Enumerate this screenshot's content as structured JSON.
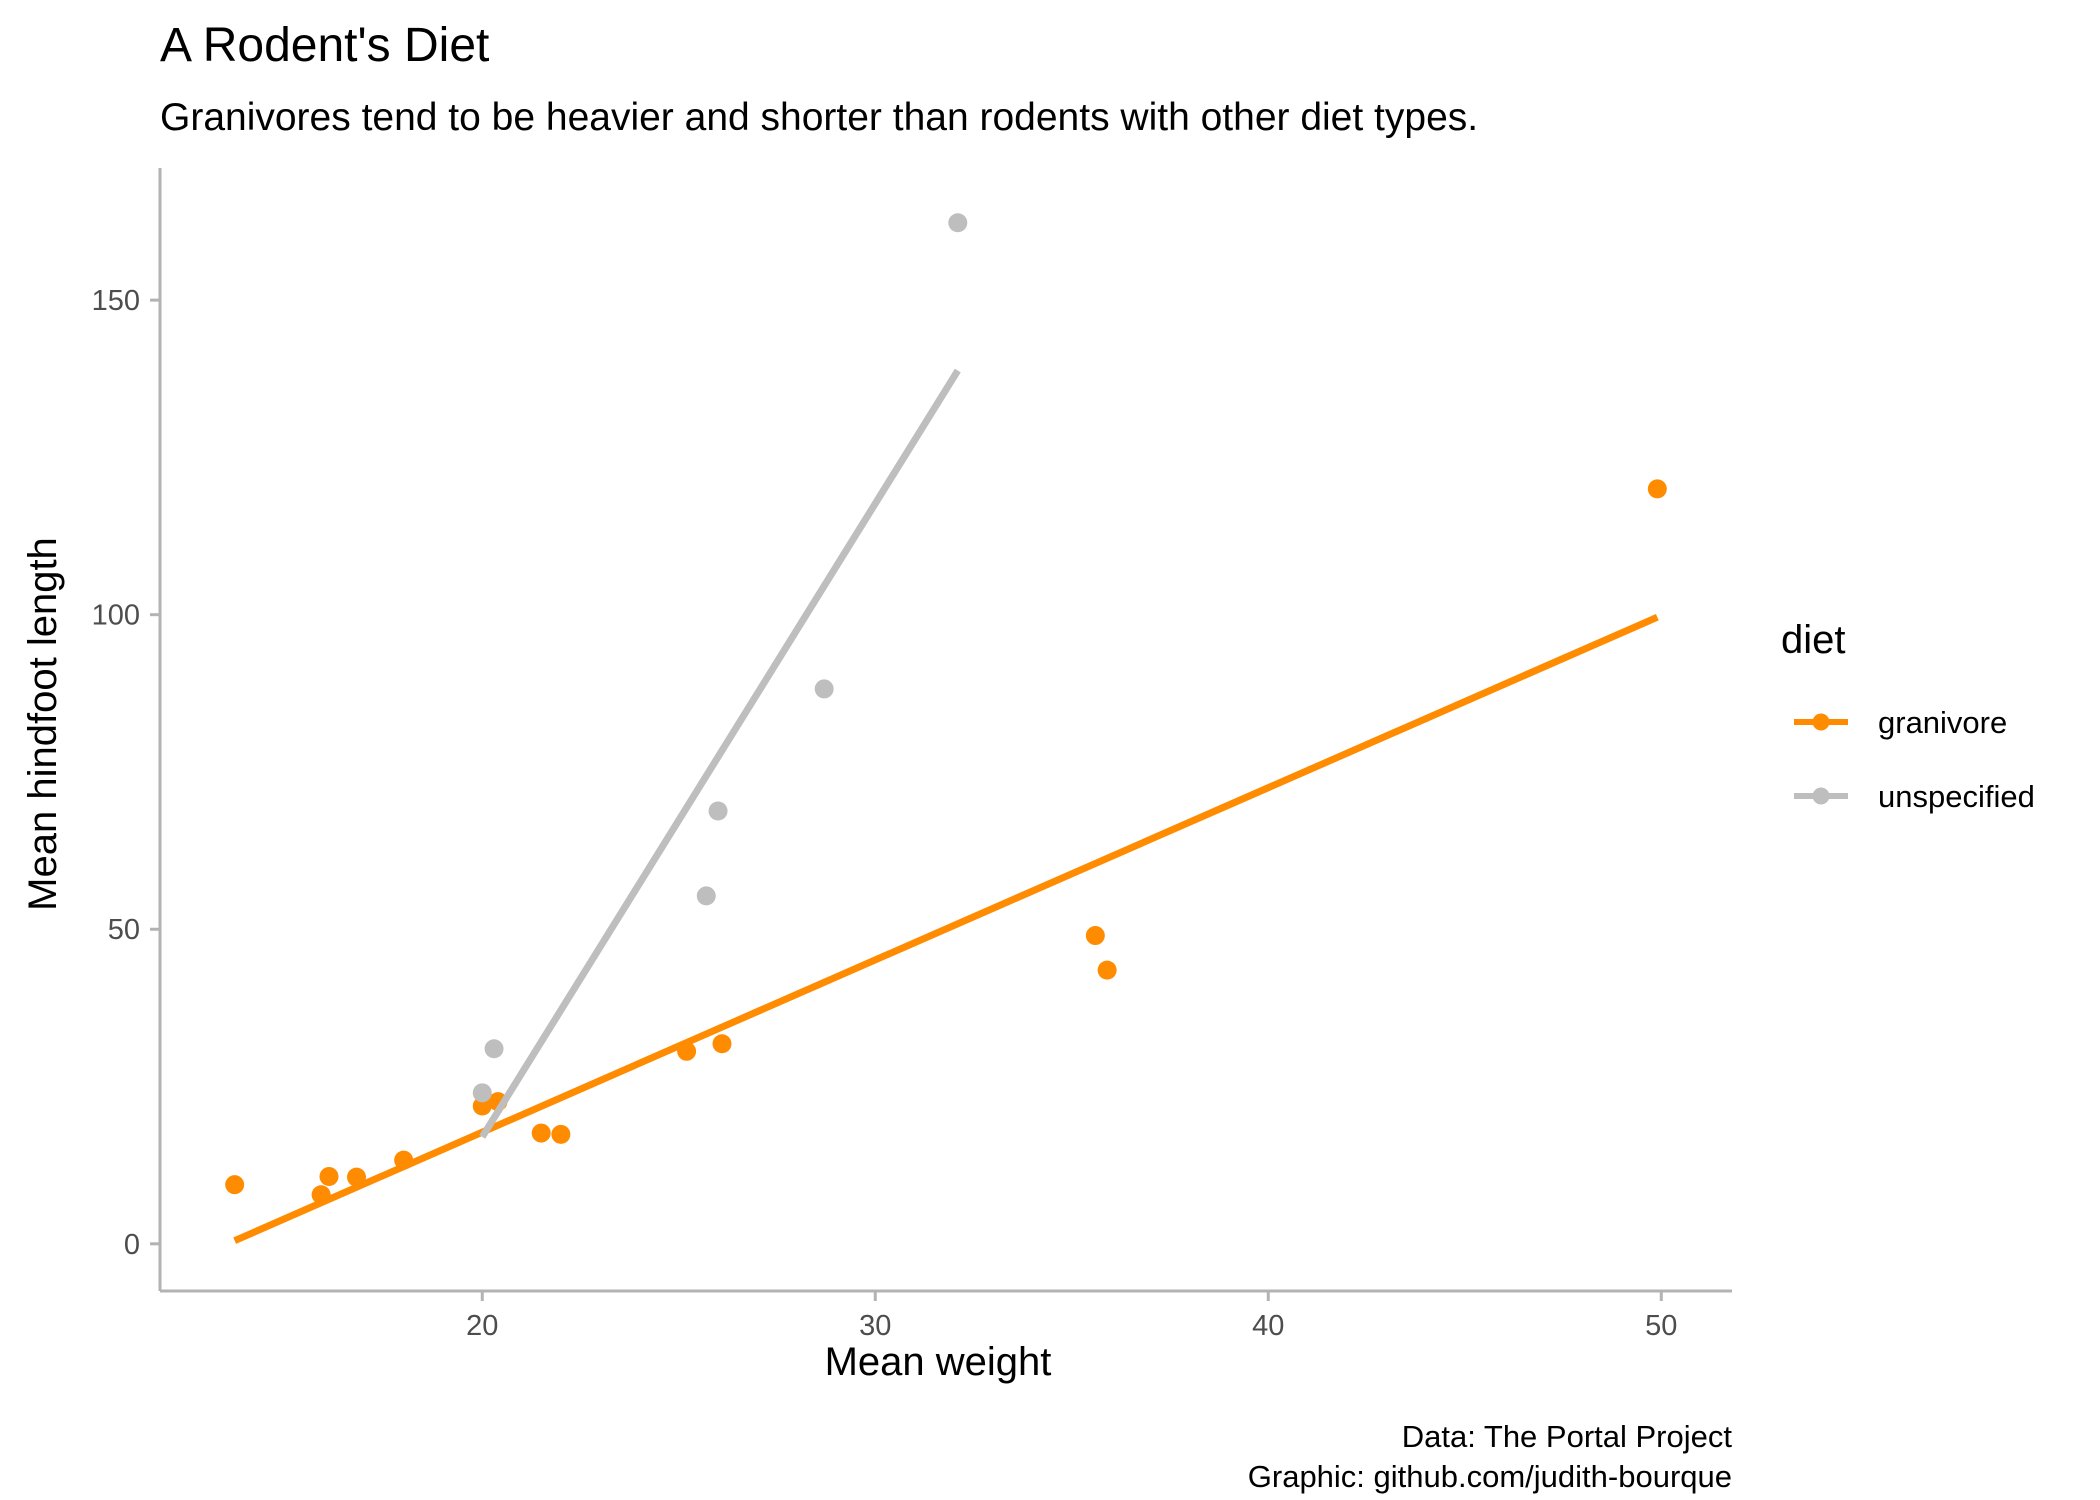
{
  "chart_data": {
    "type": "scatter",
    "title": "A Rodent's Diet",
    "subtitle": "Granivores tend to be heavier and shorter than rodents with other diet types.",
    "xlabel": "Mean weight",
    "ylabel": "Mean hindfoot length",
    "caption": [
      "Data: The Portal Project",
      "Graphic: github.com/judith-bourque"
    ],
    "xlim": [
      11.8,
      51.8
    ],
    "ylim": [
      -7.5,
      171
    ],
    "x_ticks": [
      20,
      30,
      40,
      50
    ],
    "y_ticks": [
      0,
      50,
      100,
      150
    ],
    "grid": false,
    "legend": {
      "title": "diet",
      "position": "right"
    },
    "series": [
      {
        "name": "granivore",
        "color": "#ff8c00",
        "points": [
          {
            "x": 13.7,
            "y": 9.4
          },
          {
            "x": 15.9,
            "y": 7.8
          },
          {
            "x": 16.1,
            "y": 10.7
          },
          {
            "x": 16.8,
            "y": 10.6
          },
          {
            "x": 18.0,
            "y": 13.3
          },
          {
            "x": 20.0,
            "y": 21.9
          },
          {
            "x": 20.4,
            "y": 22.6
          },
          {
            "x": 21.5,
            "y": 17.6
          },
          {
            "x": 22.0,
            "y": 17.4
          },
          {
            "x": 25.2,
            "y": 30.6
          },
          {
            "x": 26.1,
            "y": 31.8
          },
          {
            "x": 35.6,
            "y": 49.0
          },
          {
            "x": 35.9,
            "y": 43.5
          },
          {
            "x": 49.9,
            "y": 120.0
          }
        ],
        "fit": [
          {
            "x": 13.7,
            "y": 0.5
          },
          {
            "x": 49.9,
            "y": 99.6
          }
        ]
      },
      {
        "name": "unspecified",
        "color": "#bebebe",
        "points": [
          {
            "x": 20.0,
            "y": 24.0
          },
          {
            "x": 20.3,
            "y": 31.0
          },
          {
            "x": 25.7,
            "y": 55.3
          },
          {
            "x": 26.0,
            "y": 68.8
          },
          {
            "x": 28.7,
            "y": 88.2
          },
          {
            "x": 32.1,
            "y": 162.3
          }
        ],
        "fit": [
          {
            "x": 20.0,
            "y": 17.0
          },
          {
            "x": 32.1,
            "y": 138.8
          }
        ]
      }
    ]
  }
}
